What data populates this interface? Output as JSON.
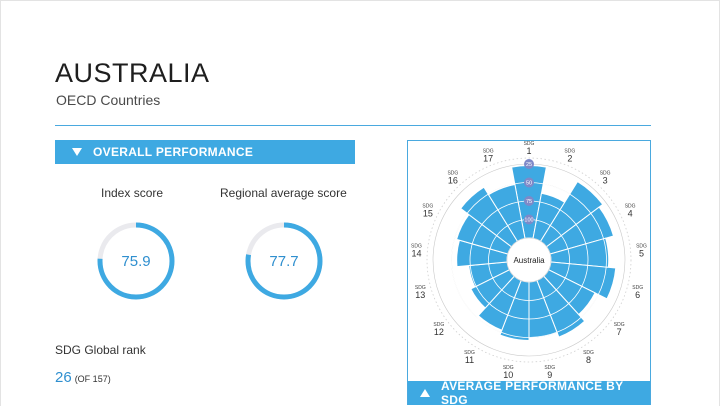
{
  "header": {
    "title": "AUSTRALIA",
    "subtitle": "OECD Countries"
  },
  "overall": {
    "section_label": "OVERALL PERFORMANCE",
    "index_label": "Index score",
    "index_value": "75.9",
    "index_fraction": 0.759,
    "regional_label": "Regional average score",
    "regional_value": "77.7",
    "regional_fraction": 0.777,
    "rank_label": "SDG Global rank",
    "rank_value": "26",
    "rank_of": "(OF 157)"
  },
  "sdg_chart": {
    "center_label": "Australia",
    "sdg_word": "SDG",
    "ring_labels": [
      "100",
      "75",
      "50",
      "25"
    ],
    "footer_label": "AVERAGE PERFORMANCE BY SDG",
    "accent": "#3ea9e2"
  },
  "chart_data": {
    "type": "radial-bar",
    "title": "",
    "categories": [
      "1",
      "2",
      "3",
      "4",
      "5",
      "6",
      "7",
      "8",
      "9",
      "10",
      "11",
      "12",
      "13",
      "14",
      "15",
      "16",
      "17"
    ],
    "values": [
      98,
      62,
      95,
      89,
      78,
      88,
      70,
      82,
      76,
      79,
      72,
      58,
      52,
      68,
      72,
      86,
      74
    ],
    "rlim": [
      0,
      100
    ],
    "ticks": [
      25,
      50,
      75,
      100
    ]
  },
  "colors": {
    "accent": "#3ea9e2",
    "value_text": "#2f8fcf",
    "track": "#eaeaee"
  }
}
